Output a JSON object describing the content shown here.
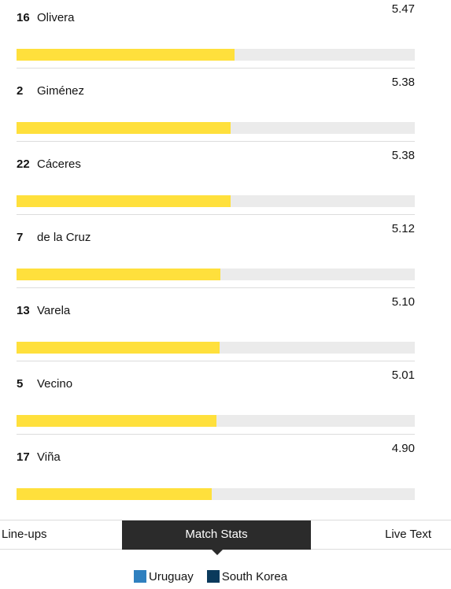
{
  "players": [
    {
      "number": "16",
      "name": "Olivera",
      "rating": "5.47",
      "rating_value": 5.47
    },
    {
      "number": "2",
      "name": "Giménez",
      "rating": "5.38",
      "rating_value": 5.38
    },
    {
      "number": "22",
      "name": "Cáceres",
      "rating": "5.38",
      "rating_value": 5.38
    },
    {
      "number": "7",
      "name": "de la Cruz",
      "rating": "5.12",
      "rating_value": 5.12
    },
    {
      "number": "13",
      "name": "Varela",
      "rating": "5.10",
      "rating_value": 5.1
    },
    {
      "number": "5",
      "name": "Vecino",
      "rating": "5.01",
      "rating_value": 5.01
    },
    {
      "number": "17",
      "name": "Viña",
      "rating": "4.90",
      "rating_value": 4.9
    }
  ],
  "rating_scale_max": 10,
  "tabs": [
    {
      "label": "Line-ups",
      "active": false
    },
    {
      "label": "Match Stats",
      "active": true
    },
    {
      "label": "Live Text",
      "active": false
    }
  ],
  "legend": [
    {
      "label": "Uruguay",
      "color": "#2f80bf"
    },
    {
      "label": "South Korea",
      "color": "#0b3a5c"
    }
  ],
  "colors": {
    "bar_fill": "#ffe03c",
    "bar_track": "#ebebeb",
    "active_tab": "#2b2b2b"
  }
}
